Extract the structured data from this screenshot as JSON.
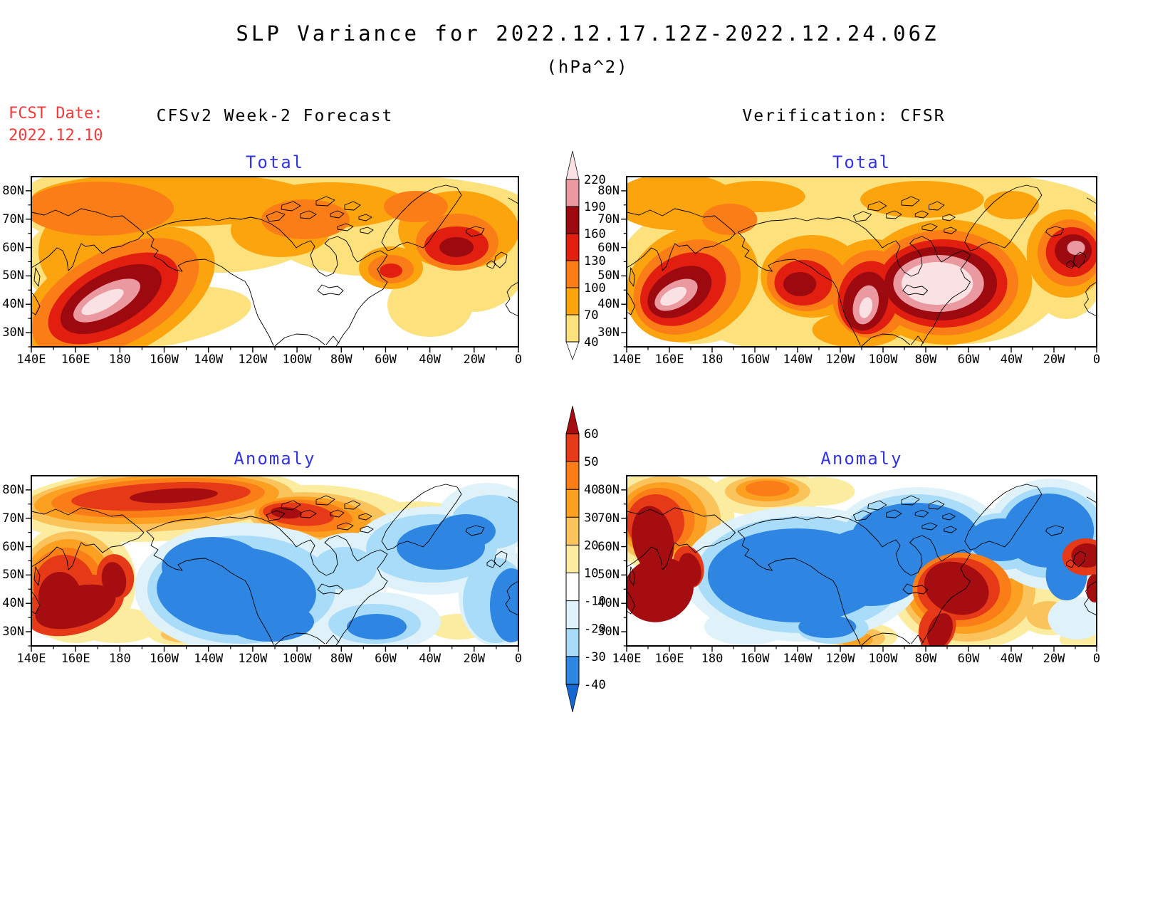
{
  "title": "SLP Variance for 2022.12.17.12Z-2022.12.24.06Z",
  "subtitle": "(hPa^2)",
  "fcst": {
    "label": "FCST Date:",
    "value": "2022.12.10"
  },
  "headers": {
    "left": "CFSv2 Week-2 Forecast",
    "right": "Verification: CFSR"
  },
  "panels": {
    "tl": {
      "title": "Total"
    },
    "tr": {
      "title": "Total"
    },
    "bl": {
      "title": "Anomaly"
    },
    "br": {
      "title": "Anomaly"
    }
  },
  "axes": {
    "lat": [
      "80N",
      "70N",
      "60N",
      "50N",
      "40N",
      "30N"
    ],
    "lon": [
      "140E",
      "160E",
      "180",
      "160W",
      "140W",
      "120W",
      "100W",
      "80W",
      "60W",
      "40W",
      "20W",
      "0"
    ]
  },
  "colorbars": {
    "total": {
      "labels": [
        "220",
        "190",
        "160",
        "130",
        "100",
        "70",
        "40"
      ],
      "segment_colors": [
        "#EB99A1",
        "#9C0A10",
        "#E21E10",
        "#FB7D17",
        "#FCA40E",
        "#FCE17D"
      ],
      "above_color": "#FAE2E4",
      "below_color": "#FFFFFF"
    },
    "anomaly": {
      "labels": [
        "60",
        "50",
        "40",
        "30",
        "20",
        "10",
        "-10",
        "-20",
        "-30",
        "-40"
      ],
      "segment_colors": [
        "#E53918",
        "#FB7D17",
        "#FCA021",
        "#FBC35C",
        "#FCEC9F",
        "#FFFFFF",
        "#DFF2FA",
        "#A8DCF8",
        "#2E86E2"
      ],
      "above_color": "#A50D10",
      "below_color": "#1667D1"
    }
  },
  "palette": {
    "pale_yellow": "#FCE17D",
    "orange": "#FCA40E",
    "deep_orange": "#FB7D17",
    "red": "#E21E10",
    "dark_red": "#9C0A10",
    "pink": "#EB99A1",
    "pale_pink": "#FAE2E4",
    "anom_pale_yellow": "#FCEC9F",
    "amber": "#FBC35C",
    "anom_orange": "#FCA021",
    "vermilion": "#E53918",
    "anom_dark_red": "#A50D10",
    "palest_blue": "#DFF2FA",
    "light_blue": "#A8DCF8",
    "medium_blue": "#2E86E2",
    "deep_blue": "#1667D1",
    "title_blue": "#3333E6",
    "fcst_red": "#F23B3B",
    "coastline": "#000000"
  },
  "chart_data": [
    {
      "panel": "CFSv2 Week-2 Forecast - Total",
      "type": "heatmap",
      "units": "hPa^2",
      "contour_levels": [
        40,
        70,
        100,
        130,
        160,
        190,
        220
      ],
      "band_colors_low_to_high": [
        "#FCE17D",
        "#FCA40E",
        "#FB7D17",
        "#E21E10",
        "#9C0A10",
        "#EB99A1",
        "#FAE2E4"
      ],
      "lon_domain": [
        "140E",
        "0"
      ],
      "lat_domain": [
        "25N",
        "85N"
      ],
      "features": [
        "Maximum >220 hPa^2 over the NW Pacific storm track near 45-50N, 155E-180",
        "Secondary maximum 130-190 hPa^2 over the North Atlantic south of Greenland",
        "Broad 40-130 hPa^2 band across the Arctic, North Pacific and North Atlantic"
      ]
    },
    {
      "panel": "Verification: CFSR - Total",
      "type": "heatmap",
      "units": "hPa^2",
      "contour_levels": [
        40,
        70,
        100,
        130,
        160,
        190,
        220
      ],
      "band_colors_low_to_high": [
        "#FCE17D",
        "#FCA40E",
        "#FB7D17",
        "#E21E10",
        "#9C0A10",
        "#EB99A1",
        "#FAE2E4"
      ],
      "lon_domain": [
        "140E",
        "0"
      ],
      "lat_domain": [
        "25N",
        "85N"
      ],
      "features": [
        "Maxima >220 hPa^2 over the NW Pacific near Japan and the central North Pacific",
        "Intense band >190 hPa^2 down western/central North America and a large >220 hPa^2 region over eastern Canada",
        "Additional maximum 160-220 hPa^2 over western Europe near the prime meridian"
      ]
    },
    {
      "panel": "CFSv2 Week-2 Forecast - Anomaly",
      "type": "heatmap",
      "units": "hPa^2",
      "contour_levels": [
        -40,
        -30,
        -20,
        -10,
        10,
        20,
        30,
        40,
        50,
        60
      ],
      "band_colors_low_to_high": [
        "#1667D1",
        "#2E86E2",
        "#A8DCF8",
        "#DFF2FA",
        "#FFFFFF",
        "#FCEC9F",
        "#FBC35C",
        "#FCA021",
        "#FB7D17",
        "#E53918",
        "#A50D10"
      ],
      "lon_domain": [
        "140E",
        "0"
      ],
      "lat_domain": [
        "25N",
        "85N"
      ],
      "features": [
        "Positive anomaly >60 hPa^2 along the Siberian Arctic coast and near Japan at the western edge",
        "Large negative anomaly < -40 hPa^2 over the NE Pacific, Gulf of Alaska and North American west coast",
        "Negative anomalies -10 to -40 hPa^2 over eastern Canada and the North Atlantic"
      ]
    },
    {
      "panel": "Verification: CFSR - Anomaly",
      "type": "heatmap",
      "units": "hPa^2",
      "contour_levels": [
        -40,
        -30,
        -20,
        -10,
        10,
        20,
        30,
        40,
        50,
        60
      ],
      "band_colors_low_to_high": [
        "#1667D1",
        "#2E86E2",
        "#A8DCF8",
        "#DFF2FA",
        "#FFFFFF",
        "#FCEC9F",
        "#FBC35C",
        "#FCA021",
        "#FB7D17",
        "#E53918",
        "#A50D10"
      ],
      "lon_domain": [
        "140E",
        "0"
      ],
      "lat_domain": [
        "25N",
        "85N"
      ],
      "features": [
        "Positive anomalies >60 hPa^2 over East Asia near Japan and over eastern North America",
        "Large negative anomalies < -40 hPa^2 over the North Pacific, Arctic Canada and the North Atlantic",
        "Smaller positive patches over the subtropical Pacific and the far eastern edge of the domain"
      ]
    }
  ]
}
